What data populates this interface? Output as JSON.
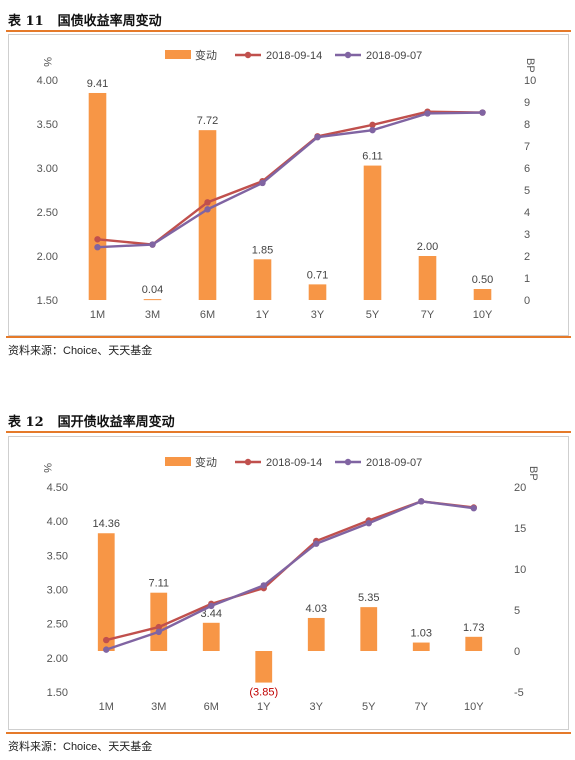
{
  "source_note": "资料来源：Choice、天天基金",
  "colors": {
    "bar": "#f79646",
    "s1": "#c0504d",
    "s2": "#8064a2",
    "neg_label": "#c00000",
    "rule": "#e57a2a"
  },
  "charts": [
    {
      "table_no": "表 11",
      "table_title": "国债收益率周变动",
      "left_axis_unit": "%",
      "right_axis_unit": "BP",
      "legend": [
        "变动",
        "2018-09-14",
        "2018-09-07"
      ],
      "y_ticks": [
        "4.00",
        "3.50",
        "3.00",
        "2.50",
        "2.00",
        "1.50"
      ],
      "y2_ticks": [
        "10",
        "9",
        "8",
        "7",
        "6",
        "5",
        "4",
        "3",
        "2",
        "1",
        "0"
      ],
      "bar_labels": [
        "9.41",
        "0.04",
        "7.72",
        "1.85",
        "0.71",
        "6.11",
        "2.00",
        "0.50"
      ]
    },
    {
      "table_no": "表 12",
      "table_title": "国开债收益率周变动",
      "left_axis_unit": "%",
      "right_axis_unit": "BP",
      "legend": [
        "变动",
        "2018-09-14",
        "2018-09-07"
      ],
      "y_ticks": [
        "4.50",
        "4.00",
        "3.50",
        "3.00",
        "2.50",
        "2.00",
        "1.50"
      ],
      "y2_ticks": [
        "20",
        "15",
        "10",
        "5",
        "0",
        "-5"
      ],
      "bar_labels": [
        "14.36",
        "7.11",
        "3.44",
        "(3.85)",
        "4.03",
        "5.35",
        "1.03",
        "1.73"
      ]
    }
  ],
  "chart_data": [
    {
      "type": "bar",
      "categories": [
        "1M",
        "3M",
        "6M",
        "1Y",
        "3Y",
        "5Y",
        "7Y",
        "10Y"
      ],
      "ylim": [
        1.5,
        4.0
      ],
      "y2lim": [
        0,
        10
      ],
      "grid": false,
      "legend_position": "top",
      "series": [
        {
          "name": "变动",
          "type": "bar",
          "axis": "right",
          "values": [
            9.41,
            0.04,
            7.72,
            1.85,
            0.71,
            6.11,
            2.0,
            0.5
          ]
        },
        {
          "name": "2018-09-14",
          "type": "line",
          "axis": "left",
          "values": [
            2.19,
            2.13,
            2.61,
            2.85,
            3.36,
            3.49,
            3.64,
            3.63
          ]
        },
        {
          "name": "2018-09-07",
          "type": "line",
          "axis": "left",
          "values": [
            2.1,
            2.13,
            2.53,
            2.83,
            3.35,
            3.43,
            3.62,
            3.63
          ]
        }
      ]
    },
    {
      "type": "bar",
      "categories": [
        "1M",
        "3M",
        "6M",
        "1Y",
        "3Y",
        "5Y",
        "7Y",
        "10Y"
      ],
      "ylim": [
        1.5,
        4.5
      ],
      "y2lim": [
        -5,
        20
      ],
      "grid": false,
      "legend_position": "top",
      "series": [
        {
          "name": "变动",
          "type": "bar",
          "axis": "right",
          "values": [
            14.36,
            7.11,
            3.44,
            -3.85,
            4.03,
            5.35,
            1.03,
            1.73
          ]
        },
        {
          "name": "2018-09-14",
          "type": "line",
          "axis": "left",
          "values": [
            2.26,
            2.45,
            2.79,
            3.02,
            3.71,
            4.01,
            4.29,
            4.2
          ]
        },
        {
          "name": "2018-09-07",
          "type": "line",
          "axis": "left",
          "values": [
            2.12,
            2.38,
            2.76,
            3.06,
            3.67,
            3.97,
            4.29,
            4.19
          ]
        }
      ]
    }
  ]
}
